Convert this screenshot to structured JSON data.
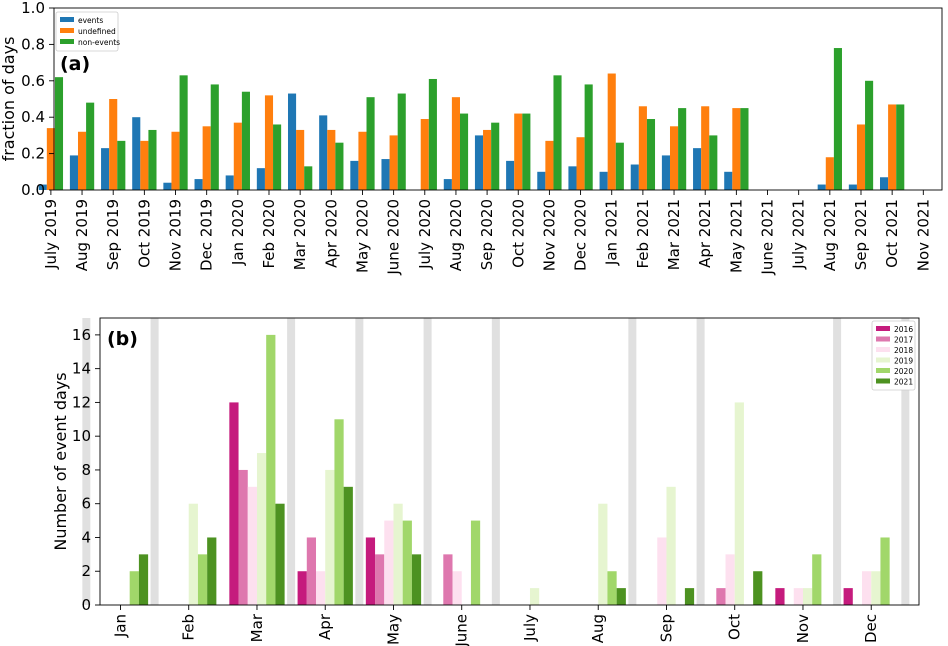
{
  "chart_data": [
    {
      "id": "a",
      "type": "bar",
      "panel_label": "(a)",
      "ylabel": "fraction of days",
      "ylim": [
        0,
        1.0
      ],
      "yticks": [
        0.0,
        0.2,
        0.4,
        0.6,
        0.8,
        1.0
      ],
      "ytick_labels": [
        "0.0",
        "0.2",
        "0.4",
        "0.6",
        "0.8",
        "1.0"
      ],
      "grid": false,
      "legend_position": "top-left",
      "categories": [
        "July 2019",
        "Aug 2019",
        "Sep 2019",
        "Oct 2019",
        "Nov 2019",
        "Dec 2019",
        "Jan 2020",
        "Feb 2020",
        "Mar 2020",
        "Apr 2020",
        "May 2020",
        "June 2020",
        "July 2020",
        "Aug 2020",
        "Sep 2020",
        "Oct 2020",
        "Nov 2020",
        "Dec 2020",
        "Jan 2021",
        "Feb 2021",
        "Mar 2021",
        "Apr 2021",
        "May 2021",
        "June 2021",
        "July 2021",
        "Aug 2021",
        "Sep 2021",
        "Oct 2021",
        "Nov 2021"
      ],
      "series": [
        {
          "name": "events",
          "color": "#1f77b4",
          "values": [
            0.03,
            0.19,
            0.23,
            0.4,
            0.04,
            0.06,
            0.08,
            0.12,
            0.53,
            0.41,
            0.16,
            0.17,
            0.0,
            0.06,
            0.3,
            0.16,
            0.1,
            0.13,
            0.1,
            0.14,
            0.19,
            0.23,
            0.1,
            0.0,
            0.0,
            0.03,
            0.03,
            0.07,
            0.0
          ]
        },
        {
          "name": "undefined",
          "color": "#ff7f0e",
          "values": [
            0.34,
            0.32,
            0.5,
            0.27,
            0.32,
            0.35,
            0.37,
            0.52,
            0.33,
            0.33,
            0.32,
            0.3,
            0.39,
            0.51,
            0.33,
            0.42,
            0.27,
            0.29,
            0.64,
            0.46,
            0.35,
            0.46,
            0.45,
            0.0,
            0.0,
            0.18,
            0.36,
            0.47,
            0.0
          ]
        },
        {
          "name": "non-events",
          "color": "#2ca02c",
          "values": [
            0.62,
            0.48,
            0.27,
            0.33,
            0.63,
            0.58,
            0.54,
            0.36,
            0.13,
            0.26,
            0.51,
            0.53,
            0.61,
            0.42,
            0.37,
            0.42,
            0.63,
            0.58,
            0.26,
            0.39,
            0.45,
            0.3,
            0.45,
            0.0,
            0.0,
            0.78,
            0.6,
            0.47,
            0.0
          ]
        }
      ]
    },
    {
      "id": "b",
      "type": "bar",
      "panel_label": "(b)",
      "ylabel": "Number of event days",
      "ylim": [
        0,
        17
      ],
      "yticks": [
        0,
        2,
        4,
        6,
        8,
        10,
        12,
        14,
        16
      ],
      "ytick_labels": [
        "0",
        "2",
        "4",
        "6",
        "8",
        "10",
        "12",
        "14",
        "16"
      ],
      "grid": false,
      "legend_position": "top-right",
      "categories": [
        "Jan",
        "Feb",
        "Mar",
        "Apr",
        "May",
        "June",
        "July",
        "Aug",
        "Sep",
        "Oct",
        "Nov",
        "Dec"
      ],
      "shaded_columns": [
        -0.5,
        0.5,
        2.5,
        3.5,
        4.5,
        5.5,
        7.5,
        8.5,
        10.5,
        11.5,
        12.5,
        13.5
      ],
      "series": [
        {
          "name": "2016",
          "color": "#c51b7d",
          "values": [
            0,
            0,
            12,
            2,
            4,
            0,
            0,
            0,
            0,
            0,
            1,
            1
          ]
        },
        {
          "name": "2017",
          "color": "#de77ae",
          "values": [
            0,
            0,
            8,
            4,
            3,
            3,
            0,
            0,
            0,
            1,
            0,
            0
          ]
        },
        {
          "name": "2018",
          "color": "#fde0ef",
          "values": [
            0,
            0,
            7,
            2,
            5,
            2,
            0,
            0,
            4,
            3,
            1,
            2
          ]
        },
        {
          "name": "2019",
          "color": "#e6f5d0",
          "values": [
            0,
            6,
            9,
            8,
            6,
            0,
            1,
            6,
            7,
            12,
            1,
            2
          ]
        },
        {
          "name": "2020",
          "color": "#a1d76a",
          "values": [
            2,
            3,
            16,
            11,
            5,
            5,
            0,
            2,
            0,
            0,
            3,
            4
          ]
        },
        {
          "name": "2021",
          "color": "#4d9221",
          "values": [
            3,
            4,
            6,
            7,
            3,
            0,
            0,
            1,
            1,
            2,
            0,
            0
          ]
        }
      ]
    }
  ]
}
